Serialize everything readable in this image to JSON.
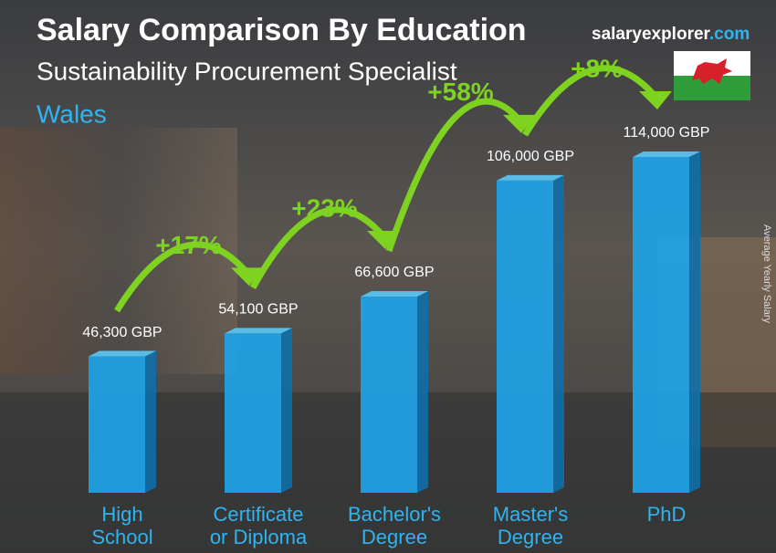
{
  "header": {
    "title": "Salary Comparison By Education",
    "subtitle": "Sustainability Procurement Specialist",
    "location": "Wales",
    "brand_name": "salaryexplorer",
    "brand_domain": ".com"
  },
  "chart_data": {
    "type": "bar",
    "categories": [
      "High School",
      "Certificate or Diploma",
      "Bachelor's Degree",
      "Master's Degree",
      "PhD"
    ],
    "values": [
      46300,
      54100,
      66600,
      106000,
      114000
    ],
    "value_labels": [
      "46,300 GBP",
      "54,100 GBP",
      "66,600 GBP",
      "106,000 GBP",
      "114,000 GBP"
    ],
    "color": "#1ea3e6",
    "y_label": "Average Yearly Salary",
    "annotations": [
      "+17%",
      "+23%",
      "+58%",
      "+8%"
    ],
    "annotation_color": "#7ed321"
  }
}
